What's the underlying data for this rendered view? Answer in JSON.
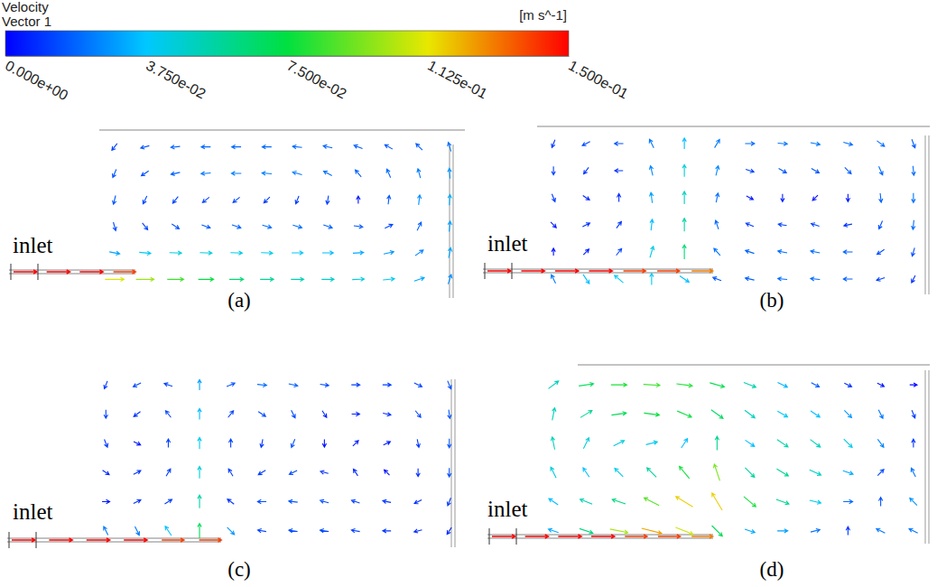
{
  "chart_data": {
    "type": "vector_field",
    "colorbar": {
      "title": [
        "Velocity",
        "Vector 1"
      ],
      "unit": "[m s^-1]",
      "lim": [
        0,
        0.15
      ],
      "ticks": [
        {
          "value": 0,
          "label": "0.000e+00"
        },
        {
          "value": 0.0375,
          "label": "3.750e-02"
        },
        {
          "value": 0.075,
          "label": "7.500e-02"
        },
        {
          "value": 0.1125,
          "label": "1.125e-01"
        },
        {
          "value": 0.15,
          "label": "1.500e-01"
        }
      ]
    },
    "panels": [
      {
        "label": "(a)",
        "inlet_label": "inlet",
        "inlet_values": [
          0.15,
          0.15,
          0.15,
          0.14
        ],
        "u": [
          [
            -0.008,
            -0.015,
            -0.018,
            -0.02,
            -0.02,
            -0.02,
            -0.02,
            -0.018,
            -0.016,
            -0.014,
            -0.012,
            -0.006
          ],
          [
            -0.006,
            -0.012,
            -0.018,
            -0.022,
            -0.024,
            -0.024,
            -0.022,
            -0.018,
            -0.012,
            -0.008,
            -0.006,
            -0.002
          ],
          [
            -0.004,
            -0.006,
            -0.008,
            -0.01,
            -0.01,
            -0.008,
            -0.004,
            -0.002,
            0.0,
            0.002,
            0.003,
            0.002
          ],
          [
            0.004,
            0.008,
            0.012,
            0.016,
            0.018,
            0.02,
            0.02,
            0.018,
            0.016,
            0.012,
            0.008,
            0.003
          ],
          [
            0.03,
            0.04,
            0.045,
            0.045,
            0.042,
            0.04,
            0.038,
            0.035,
            0.032,
            0.028,
            0.02,
            0.006
          ],
          [
            0.11,
            0.1,
            0.085,
            0.075,
            0.065,
            0.058,
            0.052,
            0.048,
            0.044,
            0.04,
            0.03,
            0.008
          ]
        ],
        "v": [
          [
            -0.01,
            -0.004,
            -0.002,
            0,
            0,
            0,
            0.002,
            0.004,
            0.006,
            0.008,
            0.012,
            0.02
          ],
          [
            -0.014,
            -0.008,
            -0.004,
            -0.002,
            0,
            0.002,
            0.006,
            0.01,
            0.014,
            0.018,
            0.022,
            0.028
          ],
          [
            -0.016,
            -0.012,
            -0.01,
            -0.008,
            -0.008,
            -0.008,
            -0.01,
            -0.012,
            0.004,
            0.016,
            0.026,
            0.032
          ],
          [
            -0.014,
            -0.01,
            -0.008,
            -0.006,
            -0.006,
            -0.006,
            -0.006,
            -0.006,
            -0.002,
            0.006,
            0.016,
            0.03
          ],
          [
            -0.006,
            -0.004,
            -0.002,
            -0.002,
            -0.002,
            -0.002,
            0,
            0,
            0.002,
            0.006,
            0.014,
            0.03
          ],
          [
            0,
            0,
            0,
            0,
            0,
            0,
            0,
            0,
            0.002,
            0.004,
            0.01,
            0.025
          ]
        ]
      },
      {
        "label": "(b)",
        "inlet_label": "inlet",
        "inlet_values": [
          0.15,
          0.15,
          0.15,
          0.15,
          0.14,
          0.14,
          0.13
        ],
        "u": [
          [
            -0.004,
            -0.012,
            -0.015,
            -0.01,
            0.0,
            0.012,
            0.02,
            0.022,
            0.022,
            0.02,
            0.016,
            0.006
          ],
          [
            0.0,
            -0.006,
            -0.01,
            -0.006,
            0.0,
            0.006,
            0.012,
            0.014,
            0.014,
            0.012,
            0.008,
            0.002
          ],
          [
            0.004,
            0.006,
            0.0,
            -0.004,
            0.0,
            0.004,
            0.004,
            0.0,
            -0.002,
            0.0,
            0.002,
            0.0
          ],
          [
            0.004,
            0.008,
            0.006,
            0.004,
            0.0,
            -0.006,
            -0.01,
            -0.012,
            -0.012,
            -0.01,
            -0.006,
            -0.002
          ],
          [
            0.0,
            0.004,
            0.008,
            0.012,
            0.0,
            -0.014,
            -0.018,
            -0.02,
            -0.02,
            -0.018,
            -0.012,
            -0.004
          ],
          [
            -0.01,
            0.02,
            -0.03,
            0.0,
            0.03,
            -0.015,
            -0.018,
            -0.02,
            -0.02,
            -0.018,
            -0.012,
            -0.004
          ]
        ],
        "v": [
          [
            -0.01,
            -0.006,
            0.0,
            0.02,
            0.035,
            0.02,
            0.0,
            -0.002,
            -0.004,
            -0.006,
            -0.012,
            -0.016
          ],
          [
            -0.012,
            -0.008,
            0.0,
            0.025,
            0.045,
            0.025,
            -0.004,
            -0.008,
            -0.008,
            -0.012,
            -0.018,
            -0.02
          ],
          [
            -0.01,
            -0.004,
            0.008,
            0.03,
            0.05,
            0.02,
            -0.002,
            -0.006,
            -0.002,
            -0.004,
            -0.018,
            -0.022
          ],
          [
            -0.004,
            0.004,
            0.008,
            0.035,
            0.055,
            0.018,
            0.004,
            0.002,
            0.004,
            -0.002,
            -0.014,
            -0.02
          ],
          [
            0.002,
            0.004,
            0.01,
            0.04,
            0.065,
            0.016,
            0.006,
            0.004,
            0.004,
            0.0,
            -0.008,
            -0.014
          ],
          [
            0.02,
            -0.03,
            0.025,
            0.04,
            -0.02,
            0.006,
            0.004,
            0.002,
            0.002,
            0.0,
            -0.004,
            -0.008
          ]
        ]
      },
      {
        "label": "(c)",
        "inlet_label": "inlet",
        "inlet_values": [
          0.15,
          0.15,
          0.15,
          0.15,
          0.14,
          0.14
        ],
        "u": [
          [
            -0.004,
            -0.012,
            -0.012,
            0.0,
            0.014,
            0.02,
            0.018,
            0.014,
            0.012,
            0.012,
            0.012,
            0.006
          ],
          [
            0.0,
            -0.008,
            -0.008,
            0.0,
            0.008,
            0.012,
            0.006,
            0.004,
            0.006,
            0.008,
            0.008,
            0.002
          ],
          [
            0.004,
            0.004,
            0.0,
            0.0,
            0.0,
            -0.002,
            -0.006,
            0.0,
            0.004,
            0.004,
            0.002,
            0.0
          ],
          [
            0.006,
            0.008,
            0.006,
            0.0,
            -0.006,
            -0.01,
            -0.012,
            -0.008,
            -0.004,
            -0.002,
            0.0,
            0.0
          ],
          [
            0.004,
            0.008,
            0.01,
            0.0,
            -0.008,
            -0.014,
            -0.016,
            -0.014,
            -0.012,
            -0.01,
            -0.008,
            -0.004
          ],
          [
            -0.01,
            0.01,
            -0.02,
            0.0,
            0.02,
            -0.012,
            -0.014,
            -0.014,
            -0.012,
            -0.01,
            -0.008,
            -0.004
          ]
        ],
        "v": [
          [
            -0.01,
            -0.006,
            0.004,
            0.03,
            0.006,
            -0.002,
            -0.004,
            -0.002,
            0.0,
            0.0,
            -0.006,
            -0.014
          ],
          [
            -0.012,
            -0.006,
            0.01,
            0.035,
            0.01,
            -0.008,
            -0.012,
            -0.006,
            0.0,
            -0.002,
            -0.01,
            -0.016
          ],
          [
            -0.01,
            -0.002,
            0.012,
            0.04,
            0.012,
            -0.01,
            -0.014,
            -0.004,
            0.004,
            0.002,
            -0.01,
            -0.016
          ],
          [
            -0.004,
            0.004,
            0.01,
            0.045,
            0.01,
            -0.006,
            -0.006,
            0.002,
            0.006,
            0.002,
            -0.008,
            -0.014
          ],
          [
            0.0,
            0.004,
            0.006,
            0.055,
            0.006,
            0.0,
            0.002,
            0.004,
            0.004,
            0.002,
            -0.004,
            -0.01
          ],
          [
            0.02,
            -0.02,
            0.03,
            0.07,
            -0.02,
            0.002,
            0.002,
            0.002,
            0.002,
            0.0,
            -0.002,
            -0.006
          ]
        ]
      },
      {
        "label": "(d)",
        "inlet_label": "inlet",
        "inlet_values": [
          0.15,
          0.15,
          0.15,
          0.15,
          0.14,
          0.14,
          0.13
        ],
        "u": [
          [
            0.04,
            0.07,
            0.08,
            0.085,
            0.08,
            0.07,
            0.05,
            0.03,
            0.015,
            0.008,
            0.004,
            0.002
          ],
          [
            0.01,
            0.05,
            0.07,
            0.075,
            0.07,
            0.055,
            0.04,
            0.035,
            0.03,
            0.02,
            0.01,
            0.004
          ],
          [
            -0.01,
            0.02,
            0.04,
            0.04,
            0.02,
            0.0,
            0.03,
            0.045,
            0.04,
            0.03,
            0.015,
            0.0
          ],
          [
            -0.02,
            -0.02,
            -0.03,
            -0.04,
            -0.05,
            -0.03,
            0.04,
            0.05,
            0.045,
            0.03,
            0.01,
            -0.01
          ],
          [
            -0.03,
            -0.05,
            -0.06,
            -0.08,
            -0.1,
            -0.06,
            0.06,
            0.055,
            0.04,
            0.02,
            0.0,
            -0.02
          ],
          [
            -0.03,
            0.06,
            0.1,
            0.12,
            0.1,
            0.05,
            0.03,
            0.03,
            0.02,
            0.0,
            -0.02,
            -0.02
          ]
        ],
        "v": [
          [
            0.03,
            0.01,
            0.0,
            -0.005,
            -0.01,
            -0.02,
            -0.02,
            -0.015,
            -0.008,
            -0.004,
            -0.002,
            0.0
          ],
          [
            0.05,
            0.03,
            0.01,
            -0.01,
            -0.03,
            -0.04,
            -0.03,
            -0.02,
            -0.02,
            -0.02,
            -0.02,
            -0.01
          ],
          [
            0.05,
            0.04,
            0.02,
            0.01,
            0.03,
            0.06,
            -0.02,
            -0.03,
            -0.03,
            -0.03,
            -0.02,
            0.01
          ],
          [
            0.04,
            0.03,
            0.03,
            0.04,
            0.06,
            0.09,
            -0.04,
            -0.03,
            -0.02,
            -0.01,
            0.01,
            0.02
          ],
          [
            0.02,
            0.02,
            0.02,
            0.04,
            0.06,
            0.1,
            -0.05,
            -0.02,
            -0.01,
            0.0,
            0.015,
            0.02
          ],
          [
            0.01,
            -0.02,
            -0.02,
            -0.03,
            -0.04,
            -0.05,
            -0.01,
            0.0,
            0.005,
            0.01,
            0.01,
            0.01
          ]
        ]
      }
    ]
  }
}
